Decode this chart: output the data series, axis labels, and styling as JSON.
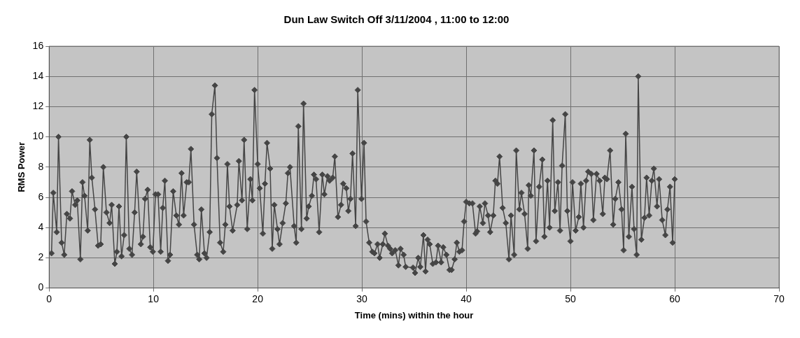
{
  "chart_data": {
    "type": "line",
    "title": "Dun Law Switch Off 3/11/2004 , 11:00 to 12:00",
    "xlabel": "Time (mins) within the hour",
    "ylabel": "RMS Power",
    "xlim": [
      0,
      70
    ],
    "xticks": [
      0,
      10,
      20,
      30,
      40,
      50,
      60,
      70
    ],
    "ylim": [
      0,
      16
    ],
    "yticks": [
      0,
      2,
      4,
      6,
      8,
      10,
      12,
      14,
      16
    ],
    "grid": true,
    "marker": "diamond",
    "line_style": "solid",
    "series": [
      {
        "color": "#454545",
        "x": [
          0.23,
          0.4,
          0.73,
          0.9,
          1.2,
          1.45,
          1.7,
          2.0,
          2.2,
          2.5,
          2.7,
          3.0,
          3.2,
          3.4,
          3.7,
          3.9,
          4.1,
          4.4,
          4.7,
          4.95,
          5.2,
          5.5,
          5.8,
          6.0,
          6.3,
          6.5,
          6.7,
          6.95,
          7.2,
          7.4,
          7.7,
          7.95,
          8.2,
          8.4,
          8.8,
          9.0,
          9.2,
          9.45,
          9.7,
          9.95,
          10.2,
          10.45,
          10.7,
          10.9,
          11.1,
          11.4,
          11.6,
          11.9,
          12.2,
          12.45,
          12.7,
          12.9,
          13.2,
          13.4,
          13.6,
          13.9,
          14.2,
          14.4,
          14.6,
          14.9,
          15.1,
          15.4,
          15.6,
          15.9,
          16.1,
          16.4,
          16.7,
          16.9,
          17.1,
          17.3,
          17.6,
          18.04,
          18.2,
          18.5,
          18.7,
          19.0,
          19.3,
          19.5,
          19.7,
          20.0,
          20.2,
          20.5,
          20.7,
          20.9,
          21.2,
          21.4,
          21.6,
          21.9,
          22.1,
          22.4,
          22.7,
          22.9,
          23.1,
          23.5,
          23.7,
          23.9,
          24.2,
          24.4,
          24.7,
          24.9,
          25.2,
          25.4,
          25.6,
          25.9,
          26.2,
          26.4,
          26.7,
          26.9,
          27.2,
          27.4,
          27.7,
          28.0,
          28.2,
          28.5,
          28.7,
          28.9,
          29.1,
          29.4,
          29.6,
          29.96,
          30.2,
          30.4,
          30.7,
          31.0,
          31.2,
          31.5,
          31.7,
          32.0,
          32.2,
          32.5,
          32.7,
          32.9,
          33.2,
          33.5,
          33.7,
          34.0,
          34.2,
          34.9,
          35.1,
          35.4,
          35.6,
          35.9,
          36.1,
          36.3,
          36.5,
          36.8,
          37.1,
          37.3,
          37.6,
          37.8,
          38.1,
          38.4,
          38.6,
          38.9,
          39.1,
          39.35,
          39.6,
          39.8,
          40.0,
          40.3,
          40.6,
          40.9,
          41.05,
          41.3,
          41.6,
          41.8,
          42.1,
          42.3,
          42.6,
          42.8,
          43.0,
          43.2,
          43.5,
          43.8,
          44.1,
          44.3,
          44.6,
          44.8,
          45.1,
          45.3,
          45.6,
          45.9,
          46.0,
          46.2,
          46.5,
          46.7,
          47.0,
          47.3,
          47.5,
          47.8,
          48.0,
          48.3,
          48.5,
          48.8,
          49.0,
          49.2,
          49.5,
          49.7,
          50.0,
          50.2,
          50.5,
          50.8,
          51.0,
          51.25,
          51.5,
          51.7,
          52.0,
          52.2,
          52.5,
          52.8,
          53.1,
          53.3,
          53.5,
          53.8,
          54.1,
          54.3,
          54.6,
          54.9,
          55.1,
          55.3,
          55.6,
          55.9,
          56.1,
          56.35,
          56.5,
          56.8,
          57.1,
          57.3,
          57.55,
          57.8,
          58.0,
          58.3,
          58.5,
          58.8,
          59.1,
          59.3,
          59.55,
          59.8,
          60.0
        ],
        "values": [
          2.3,
          6.3,
          3.7,
          10.0,
          3.0,
          2.2,
          4.9,
          4.6,
          6.4,
          5.5,
          5.8,
          1.9,
          7.0,
          6.1,
          3.8,
          9.8,
          7.3,
          5.2,
          2.8,
          2.9,
          8.0,
          5.0,
          4.3,
          5.5,
          1.6,
          2.4,
          5.4,
          2.1,
          3.5,
          10.0,
          2.6,
          2.2,
          5.0,
          7.7,
          2.9,
          3.4,
          5.9,
          6.5,
          2.7,
          2.4,
          6.2,
          6.2,
          2.4,
          5.3,
          7.1,
          1.8,
          2.2,
          6.4,
          4.8,
          4.2,
          7.6,
          4.8,
          7.0,
          7.0,
          9.2,
          4.2,
          2.2,
          1.9,
          5.2,
          2.3,
          2.0,
          3.7,
          11.5,
          13.4,
          8.6,
          3.0,
          2.4,
          4.2,
          8.2,
          5.4,
          3.8,
          5.5,
          8.4,
          5.8,
          9.8,
          3.9,
          7.2,
          5.8,
          13.1,
          8.2,
          6.6,
          3.6,
          6.9,
          9.6,
          7.9,
          2.6,
          5.5,
          3.9,
          2.9,
          4.3,
          5.6,
          7.6,
          8.0,
          4.1,
          3.0,
          10.7,
          3.9,
          12.2,
          4.6,
          5.4,
          6.1,
          7.5,
          7.2,
          3.7,
          7.5,
          6.2,
          7.4,
          7.1,
          7.3,
          8.7,
          4.7,
          5.5,
          6.9,
          6.6,
          5.1,
          5.9,
          8.9,
          4.1,
          13.1,
          5.9,
          9.6,
          4.4,
          3.0,
          2.4,
          2.3,
          2.9,
          2.0,
          2.9,
          3.6,
          2.8,
          2.6,
          2.3,
          2.5,
          1.5,
          2.6,
          2.2,
          1.4,
          1.35,
          1.0,
          2.0,
          1.4,
          3.5,
          1.1,
          3.2,
          2.9,
          1.6,
          1.7,
          2.8,
          1.7,
          2.7,
          2.2,
          1.2,
          1.2,
          1.9,
          3.0,
          2.4,
          2.5,
          4.4,
          5.7,
          5.6,
          5.6,
          3.6,
          3.75,
          5.4,
          4.3,
          5.6,
          4.8,
          3.7,
          4.8,
          7.1,
          6.9,
          8.7,
          5.3,
          4.3,
          1.9,
          4.8,
          2.2,
          9.1,
          5.2,
          6.3,
          4.9,
          2.6,
          6.8,
          6.1,
          9.1,
          3.1,
          6.7,
          8.5,
          3.4,
          7.1,
          4.0,
          11.1,
          5.1,
          7.0,
          3.8,
          8.1,
          11.5,
          5.1,
          3.1,
          7.0,
          3.8,
          4.7,
          6.9,
          4.0,
          7.1,
          7.7,
          7.55,
          4.5,
          7.55,
          7.1,
          4.9,
          7.3,
          7.2,
          9.1,
          4.2,
          5.9,
          7.0,
          5.2,
          2.5,
          10.2,
          3.4,
          6.7,
          3.9,
          2.2,
          14.0,
          3.2,
          4.65,
          7.3,
          4.8,
          7.1,
          7.9,
          5.4,
          7.2,
          4.5,
          3.5,
          5.2,
          6.7,
          3.0,
          7.2
        ]
      }
    ]
  }
}
